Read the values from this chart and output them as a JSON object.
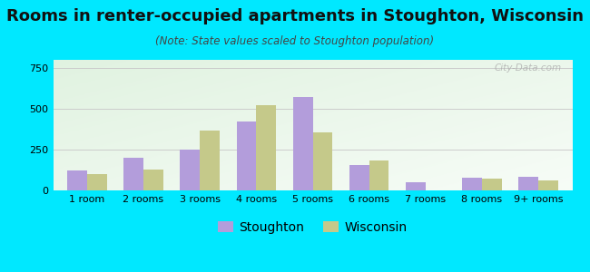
{
  "title": "Rooms in renter-occupied apartments in Stoughton, Wisconsin",
  "subtitle": "(Note: State values scaled to Stoughton population)",
  "categories": [
    "1 room",
    "2 rooms",
    "3 rooms",
    "4 rooms",
    "5 rooms",
    "6 rooms",
    "7 rooms",
    "8 rooms",
    "9+ rooms"
  ],
  "stoughton_values": [
    120,
    200,
    250,
    420,
    575,
    155,
    50,
    80,
    85
  ],
  "wisconsin_values": [
    100,
    130,
    365,
    520,
    355,
    185,
    0,
    70,
    60
  ],
  "stoughton_color": "#b39ddb",
  "wisconsin_color": "#c5c98a",
  "ylim": [
    0,
    800
  ],
  "yticks": [
    0,
    250,
    500,
    750
  ],
  "bar_width": 0.35,
  "background_color": "#00e8ff",
  "grid_color": "#cccccc",
  "title_fontsize": 13,
  "subtitle_fontsize": 8.5,
  "tick_fontsize": 8,
  "legend_fontsize": 10,
  "watermark": "City-Data.com"
}
